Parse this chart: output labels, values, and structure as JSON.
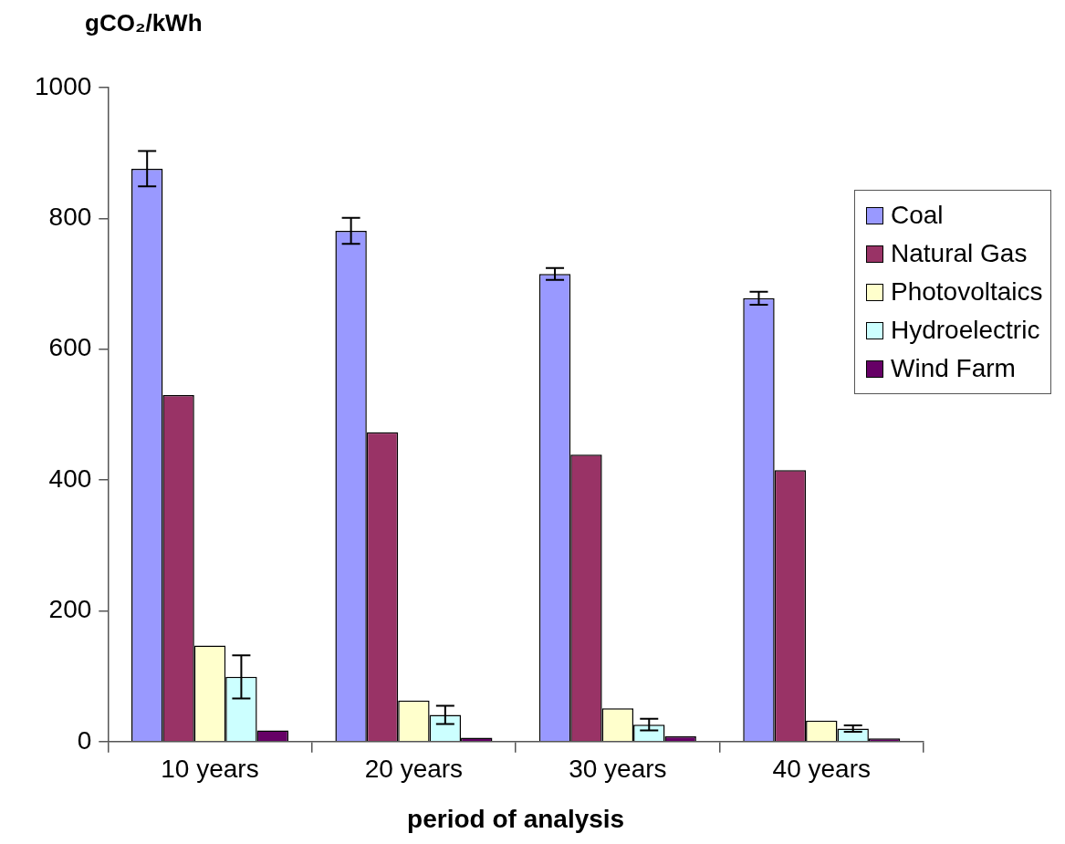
{
  "chart_data": {
    "type": "bar",
    "ylabel": "gCO₂/kWh",
    "xlabel": "period of analysis",
    "categories": [
      "10 years",
      "20 years",
      "30 years",
      "40 years"
    ],
    "series": [
      {
        "name": "Coal",
        "color": "#9999ff",
        "values": [
          876,
          781,
          715,
          678
        ],
        "errors": [
          27,
          20,
          9,
          10
        ]
      },
      {
        "name": "Natural Gas",
        "color": "#993366",
        "values": [
          530,
          473,
          439,
          415
        ]
      },
      {
        "name": "Photovoltaics",
        "color": "#ffffcc",
        "values": [
          147,
          63,
          51,
          32
        ]
      },
      {
        "name": "Hydroelectric",
        "color": "#ccffff",
        "values": [
          99,
          41,
          26,
          20
        ],
        "errors": [
          33,
          14,
          9,
          5
        ]
      },
      {
        "name": "Wind Farm",
        "color": "#660066",
        "values": [
          17,
          6,
          8,
          5
        ]
      }
    ],
    "ylim": [
      0,
      1000
    ],
    "yticks": [
      0,
      200,
      400,
      600,
      800,
      1000
    ],
    "grid": false,
    "legend": "right"
  }
}
